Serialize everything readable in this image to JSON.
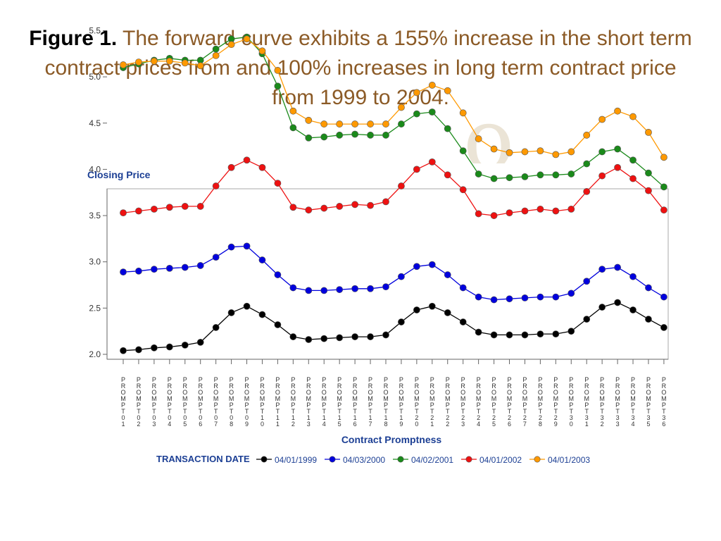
{
  "caption": {
    "figure_label": "Figure 1.",
    "text": " The forward curve exhibits a 155% increase in the short term contract prices from and 100% increases in long term contract price from 1999 to 2004."
  },
  "chart_data": {
    "type": "line",
    "title": "Closing Price",
    "xlabel": "Contract Promptness",
    "legend_title": "TRANSACTION DATE",
    "legend_position": "bottom",
    "grid": false,
    "ylim": [
      2.0,
      5.6
    ],
    "yticks": [
      "2.0",
      "2.5",
      "3.0",
      "3.5",
      "4.0",
      "4.5",
      "5.0",
      "5.5"
    ],
    "categories": [
      "PROMPT01",
      "PROMPT02",
      "PROMPT03",
      "PROMPT04",
      "PROMPT05",
      "PROMPT06",
      "PROMPT07",
      "PROMPT08",
      "PROMPT09",
      "PROMPT10",
      "PROMPT11",
      "PROMPT12",
      "PROMPT13",
      "PROMPT14",
      "PROMPT15",
      "PROMPT16",
      "PROMPT17",
      "PROMPT18",
      "PROMPT19",
      "PROMPT20",
      "PROMPT21",
      "PROMPT22",
      "PROMPT23",
      "PROMPT24",
      "PROMPT25",
      "PROMPT26",
      "PROMPT27",
      "PROMPT28",
      "PROMPT29",
      "PROMPT30",
      "PROMPT31",
      "PROMPT32",
      "PROMPT33",
      "PROMPT34",
      "PROMPT35",
      "PROMPT36"
    ],
    "series": [
      {
        "name": "04/01/1999",
        "color": "#000000",
        "values": [
          2.04,
          2.05,
          2.07,
          2.08,
          2.1,
          2.13,
          2.29,
          2.45,
          2.52,
          2.43,
          2.32,
          2.19,
          2.16,
          2.17,
          2.18,
          2.19,
          2.19,
          2.21,
          2.35,
          2.48,
          2.52,
          2.45,
          2.35,
          2.24,
          2.21,
          2.21,
          2.21,
          2.22,
          2.22,
          2.25,
          2.38,
          2.51,
          2.56,
          2.48,
          2.38,
          2.29
        ]
      },
      {
        "name": "04/03/2000",
        "color": "#0000dd",
        "values": [
          2.89,
          2.9,
          2.92,
          2.93,
          2.94,
          2.96,
          3.05,
          3.16,
          3.17,
          3.02,
          2.86,
          2.72,
          2.69,
          2.69,
          2.7,
          2.71,
          2.71,
          2.73,
          2.84,
          2.95,
          2.97,
          2.86,
          2.72,
          2.62,
          2.59,
          2.6,
          2.61,
          2.62,
          2.62,
          2.66,
          2.79,
          2.92,
          2.94,
          2.84,
          2.72,
          2.62
        ]
      },
      {
        "name": "04/02/2001",
        "color": "#1a8a1a",
        "values": [
          5.1,
          5.14,
          5.18,
          5.2,
          5.18,
          5.18,
          5.3,
          5.41,
          5.43,
          5.25,
          4.9,
          4.45,
          4.34,
          4.35,
          4.37,
          4.38,
          4.37,
          4.37,
          4.49,
          4.6,
          4.62,
          4.44,
          4.2,
          3.95,
          3.9,
          3.91,
          3.92,
          3.94,
          3.94,
          3.95,
          4.06,
          4.19,
          4.22,
          4.1,
          3.96,
          3.81
        ]
      },
      {
        "name": "04/01/2002",
        "color": "#ee1111",
        "values": [
          3.53,
          3.55,
          3.57,
          3.59,
          3.6,
          3.6,
          3.82,
          4.02,
          4.1,
          4.02,
          3.85,
          3.59,
          3.56,
          3.58,
          3.6,
          3.62,
          3.61,
          3.65,
          3.82,
          4.0,
          4.08,
          3.94,
          3.78,
          3.52,
          3.5,
          3.53,
          3.55,
          3.57,
          3.55,
          3.57,
          3.76,
          3.93,
          4.02,
          3.9,
          3.77,
          3.56
        ]
      },
      {
        "name": "04/01/2003",
        "color": "#ff9900",
        "values": [
          5.13,
          5.16,
          5.17,
          5.17,
          5.15,
          5.12,
          5.23,
          5.35,
          5.41,
          5.28,
          5.07,
          4.63,
          4.53,
          4.49,
          4.49,
          4.49,
          4.49,
          4.49,
          4.67,
          4.83,
          4.91,
          4.85,
          4.61,
          4.33,
          4.22,
          4.18,
          4.19,
          4.2,
          4.16,
          4.19,
          4.37,
          4.54,
          4.63,
          4.57,
          4.4,
          4.13
        ]
      }
    ]
  }
}
